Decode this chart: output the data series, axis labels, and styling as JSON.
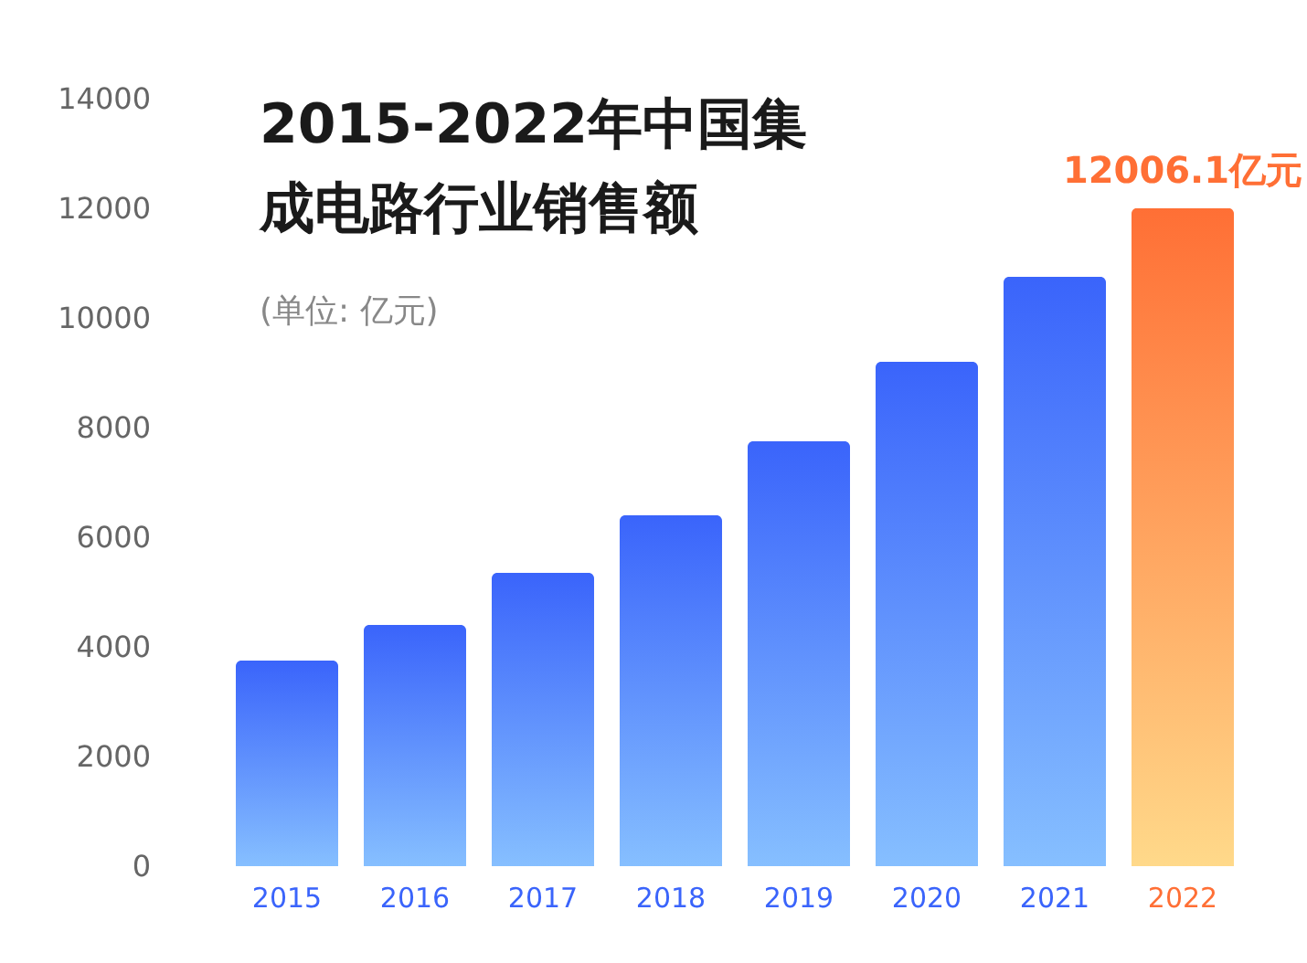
{
  "chart_data": {
    "type": "bar",
    "title": "2015-2022年中国集成电路行业销售额",
    "subtitle": "(单位: 亿元)",
    "categories": [
      "2015",
      "2016",
      "2017",
      "2018",
      "2019",
      "2020",
      "2021",
      "2022"
    ],
    "values": [
      3750,
      4400,
      5350,
      6400,
      7750,
      9200,
      10750,
      12006.1
    ],
    "colors": [
      "#3a64fb",
      "#3a64fb",
      "#3a64fb",
      "#3a64fb",
      "#3a64fb",
      "#3a64fb",
      "#3a64fb",
      "#ff6f35"
    ],
    "value_labels": [
      null,
      null,
      null,
      null,
      null,
      null,
      null,
      "12006.1亿元"
    ],
    "ylim": [
      0,
      14000
    ],
    "yticks": [
      0,
      2000,
      4000,
      6000,
      8000,
      10000,
      12000,
      14000
    ],
    "grid": false
  }
}
